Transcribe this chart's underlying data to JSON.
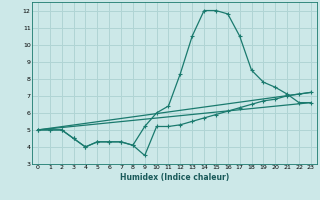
{
  "xlabel": "Humidex (Indice chaleur)",
  "bg_color": "#cce8e8",
  "grid_color": "#b0d4d4",
  "line_color": "#1a7a6e",
  "xlim": [
    -0.5,
    23.5
  ],
  "ylim": [
    3,
    12.5
  ],
  "xticks": [
    0,
    1,
    2,
    3,
    4,
    5,
    6,
    7,
    8,
    9,
    10,
    11,
    12,
    13,
    14,
    15,
    16,
    17,
    18,
    19,
    20,
    21,
    22,
    23
  ],
  "yticks": [
    3,
    4,
    5,
    6,
    7,
    8,
    9,
    10,
    11,
    12
  ],
  "line1_x": [
    0,
    1,
    2,
    3,
    4,
    5,
    6,
    7,
    8,
    9,
    10,
    11,
    12,
    13,
    14,
    15,
    16,
    17,
    18,
    19,
    20,
    21,
    22,
    23
  ],
  "line1_y": [
    5.0,
    5.0,
    5.0,
    4.5,
    4.0,
    4.3,
    4.3,
    4.3,
    4.1,
    3.5,
    5.2,
    5.2,
    5.3,
    5.5,
    5.7,
    5.9,
    6.1,
    6.3,
    6.5,
    6.7,
    6.8,
    7.0,
    7.1,
    7.2
  ],
  "line2_x": [
    0,
    1,
    2,
    3,
    4,
    5,
    6,
    7,
    8,
    9,
    10,
    11,
    12,
    13,
    14,
    15,
    16,
    17,
    18,
    19,
    20,
    21,
    22,
    23
  ],
  "line2_y": [
    5.0,
    5.0,
    5.0,
    4.5,
    4.0,
    4.3,
    4.3,
    4.3,
    4.1,
    5.2,
    6.0,
    6.4,
    8.3,
    10.5,
    12.0,
    12.0,
    11.8,
    10.5,
    8.5,
    7.8,
    7.5,
    7.1,
    6.6,
    6.6
  ],
  "line3_x": [
    0,
    23
  ],
  "line3_y": [
    5.0,
    7.2
  ],
  "line4_x": [
    0,
    23
  ],
  "line4_y": [
    5.0,
    6.6
  ]
}
